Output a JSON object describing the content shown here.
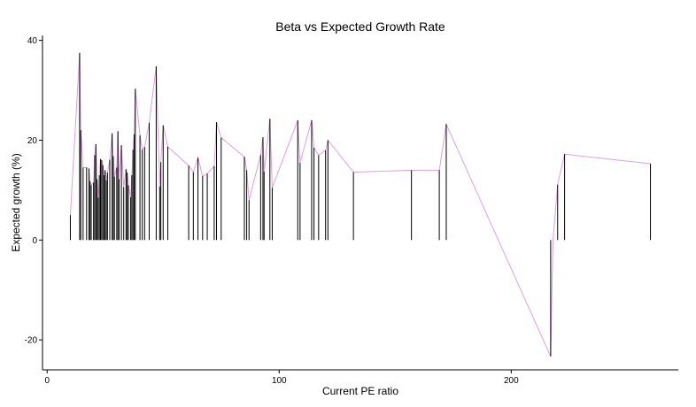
{
  "chart_data": {
    "type": "line",
    "title": "Beta vs Expected Growth Rate",
    "xlabel": "Current PE ratio",
    "ylabel": "Expected growth (%)",
    "xlim": [
      -2,
      272
    ],
    "ylim": [
      -26,
      41
    ],
    "xticks": [
      0,
      100,
      200
    ],
    "yticks": [
      -20,
      0,
      20,
      40
    ],
    "xtick_labels": [
      "0",
      "100",
      "200"
    ],
    "ytick_labels": [
      "-20",
      "0",
      "20",
      "40"
    ],
    "grid": false,
    "line_color": "#dda0dd",
    "bar_color": "#000000",
    "points": [
      [
        10,
        5
      ],
      [
        14,
        37.5
      ],
      [
        14.5,
        22
      ],
      [
        15.5,
        14.5
      ],
      [
        17,
        14.5
      ],
      [
        18,
        14.3
      ],
      [
        18.5,
        11.8
      ],
      [
        19,
        11
      ],
      [
        20,
        11.5
      ],
      [
        20.5,
        17
      ],
      [
        21,
        19.2
      ],
      [
        21.5,
        12.2
      ],
      [
        22,
        8.5
      ],
      [
        22.5,
        13
      ],
      [
        23,
        16.2
      ],
      [
        23.5,
        16
      ],
      [
        24,
        15
      ],
      [
        24.5,
        13
      ],
      [
        25,
        14
      ],
      [
        25.5,
        12
      ],
      [
        26,
        13.5
      ],
      [
        27,
        16.1
      ],
      [
        28,
        21.4
      ],
      [
        28.5,
        16.8
      ],
      [
        29,
        12.7
      ],
      [
        30,
        14.5
      ],
      [
        30.5,
        21.8
      ],
      [
        31,
        12.2
      ],
      [
        32,
        19
      ],
      [
        33,
        10.6
      ],
      [
        34,
        14.2
      ],
      [
        34.5,
        13.5
      ],
      [
        35,
        11
      ],
      [
        36,
        8.6
      ],
      [
        36.5,
        13
      ],
      [
        37,
        18.1
      ],
      [
        37.5,
        21.2
      ],
      [
        38,
        30.3
      ],
      [
        40,
        21
      ],
      [
        41,
        18.1
      ],
      [
        42,
        18.6
      ],
      [
        44,
        23.5
      ],
      [
        47,
        34.8
      ],
      [
        48.5,
        10.7
      ],
      [
        49,
        15.6
      ],
      [
        50,
        23
      ],
      [
        52,
        18.7
      ],
      [
        61,
        14.9
      ],
      [
        63,
        13.6
      ],
      [
        65,
        16.5
      ],
      [
        67,
        12.8
      ],
      [
        69,
        13.3
      ],
      [
        72,
        14.8
      ],
      [
        73,
        23.6
      ],
      [
        75,
        20.5
      ],
      [
        85,
        16.7
      ],
      [
        86,
        14
      ],
      [
        87,
        8
      ],
      [
        92,
        17
      ],
      [
        93,
        20.6
      ],
      [
        93.5,
        13.7
      ],
      [
        96,
        24.3
      ],
      [
        97,
        10.5
      ],
      [
        108,
        24
      ],
      [
        109,
        15.5
      ],
      [
        114,
        24
      ],
      [
        115,
        18.5
      ],
      [
        117,
        17
      ],
      [
        120,
        18
      ],
      [
        121,
        20
      ],
      [
        132,
        13.6
      ],
      [
        157,
        14
      ],
      [
        169,
        14
      ],
      [
        172,
        23.2
      ],
      [
        217,
        -23.3
      ],
      [
        218,
        0
      ],
      [
        220,
        11.1
      ],
      [
        223,
        17.2
      ],
      [
        260,
        15.3
      ]
    ]
  }
}
